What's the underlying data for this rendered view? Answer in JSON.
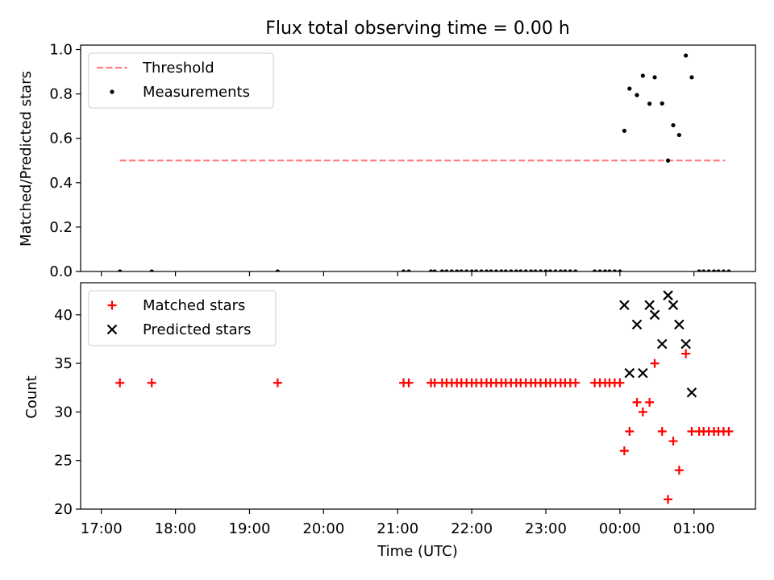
{
  "chart_data": {
    "title": "Flux total observing time = 0.00 h",
    "xlabel": "Time (UTC)",
    "xlim": [
      -0.28,
      8.83
    ],
    "xticks": [
      {
        "v": 0,
        "label": "17:00"
      },
      {
        "v": 1,
        "label": "18:00"
      },
      {
        "v": 2,
        "label": "19:00"
      },
      {
        "v": 3,
        "label": "20:00"
      },
      {
        "v": 4,
        "label": "21:00"
      },
      {
        "v": 5,
        "label": "22:00"
      },
      {
        "v": 6,
        "label": "23:00"
      },
      {
        "v": 7,
        "label": "00:00"
      },
      {
        "v": 8,
        "label": "01:00"
      }
    ],
    "panels": [
      {
        "type": "scatter",
        "ylabel": "Matched/Predicted stars",
        "ylim": [
          0,
          1.02
        ],
        "yticks": [
          0,
          0.2,
          0.4,
          0.6,
          0.8,
          1.0
        ],
        "ytick_labels": [
          "0.0",
          "0.2",
          "0.4",
          "0.6",
          "0.8",
          "1.0"
        ],
        "legend": "top-left",
        "threshold": {
          "name": "Threshold",
          "value": 0.5,
          "x_range": [
            0.25,
            8.42
          ],
          "color": "#ff7f7f",
          "style": "dashed"
        },
        "series": [
          {
            "name": "Measurements",
            "marker": "dot",
            "color": "#000000",
            "points": [
              [
                0.25,
                0
              ],
              [
                0.68,
                0
              ],
              [
                2.38,
                0
              ],
              [
                4.08,
                0
              ],
              [
                4.15,
                0
              ],
              [
                4.45,
                0
              ],
              [
                4.5,
                0
              ],
              [
                4.6,
                0
              ],
              [
                4.66,
                0
              ],
              [
                4.73,
                0
              ],
              [
                4.8,
                0
              ],
              [
                4.86,
                0
              ],
              [
                4.93,
                0
              ],
              [
                5.0,
                0
              ],
              [
                5.06,
                0
              ],
              [
                5.13,
                0
              ],
              [
                5.2,
                0
              ],
              [
                5.26,
                0
              ],
              [
                5.33,
                0
              ],
              [
                5.4,
                0
              ],
              [
                5.46,
                0
              ],
              [
                5.53,
                0
              ],
              [
                5.6,
                0
              ],
              [
                5.66,
                0
              ],
              [
                5.73,
                0
              ],
              [
                5.8,
                0
              ],
              [
                5.86,
                0
              ],
              [
                5.93,
                0
              ],
              [
                6.0,
                0
              ],
              [
                6.06,
                0
              ],
              [
                6.13,
                0
              ],
              [
                6.2,
                0
              ],
              [
                6.26,
                0
              ],
              [
                6.33,
                0
              ],
              [
                6.4,
                0
              ],
              [
                6.66,
                0
              ],
              [
                6.73,
                0
              ],
              [
                6.8,
                0
              ],
              [
                6.86,
                0
              ],
              [
                6.93,
                0
              ],
              [
                7.0,
                0
              ],
              [
                7.06,
                0.634
              ],
              [
                7.13,
                0.824
              ],
              [
                7.23,
                0.795
              ],
              [
                7.31,
                0.882
              ],
              [
                7.4,
                0.756
              ],
              [
                7.47,
                0.875
              ],
              [
                7.57,
                0.757
              ],
              [
                7.65,
                0.5
              ],
              [
                7.72,
                0.659
              ],
              [
                7.8,
                0.615
              ],
              [
                7.89,
                0.973
              ],
              [
                7.97,
                0.875
              ],
              [
                8.07,
                0
              ],
              [
                8.13,
                0
              ],
              [
                8.2,
                0
              ],
              [
                8.27,
                0
              ],
              [
                8.33,
                0
              ],
              [
                8.4,
                0
              ],
              [
                8.47,
                0
              ]
            ]
          }
        ]
      },
      {
        "type": "scatter",
        "ylabel": "Count",
        "ylim": [
          20,
          43.3
        ],
        "yticks": [
          20,
          25,
          30,
          35,
          40
        ],
        "ytick_labels": [
          "20",
          "25",
          "30",
          "35",
          "40"
        ],
        "legend": "top-left",
        "series": [
          {
            "name": "Matched stars",
            "marker": "plus",
            "color": "#ff0000",
            "points": [
              [
                0.25,
                33
              ],
              [
                0.68,
                33
              ],
              [
                2.38,
                33
              ],
              [
                4.08,
                33
              ],
              [
                4.15,
                33
              ],
              [
                4.45,
                33
              ],
              [
                4.5,
                33
              ],
              [
                4.6,
                33
              ],
              [
                4.66,
                33
              ],
              [
                4.73,
                33
              ],
              [
                4.8,
                33
              ],
              [
                4.86,
                33
              ],
              [
                4.93,
                33
              ],
              [
                5.0,
                33
              ],
              [
                5.06,
                33
              ],
              [
                5.13,
                33
              ],
              [
                5.2,
                33
              ],
              [
                5.26,
                33
              ],
              [
                5.33,
                33
              ],
              [
                5.4,
                33
              ],
              [
                5.46,
                33
              ],
              [
                5.53,
                33
              ],
              [
                5.6,
                33
              ],
              [
                5.66,
                33
              ],
              [
                5.73,
                33
              ],
              [
                5.8,
                33
              ],
              [
                5.86,
                33
              ],
              [
                5.93,
                33
              ],
              [
                6.0,
                33
              ],
              [
                6.06,
                33
              ],
              [
                6.13,
                33
              ],
              [
                6.2,
                33
              ],
              [
                6.26,
                33
              ],
              [
                6.33,
                33
              ],
              [
                6.4,
                33
              ],
              [
                6.66,
                33
              ],
              [
                6.73,
                33
              ],
              [
                6.8,
                33
              ],
              [
                6.86,
                33
              ],
              [
                6.93,
                33
              ],
              [
                7.0,
                33
              ],
              [
                7.06,
                26
              ],
              [
                7.13,
                28
              ],
              [
                7.23,
                31
              ],
              [
                7.31,
                30
              ],
              [
                7.4,
                31
              ],
              [
                7.47,
                35
              ],
              [
                7.57,
                28
              ],
              [
                7.65,
                21
              ],
              [
                7.72,
                27
              ],
              [
                7.8,
                24
              ],
              [
                7.89,
                36
              ],
              [
                7.97,
                28
              ],
              [
                8.07,
                28
              ],
              [
                8.13,
                28
              ],
              [
                8.2,
                28
              ],
              [
                8.27,
                28
              ],
              [
                8.33,
                28
              ],
              [
                8.4,
                28
              ],
              [
                8.47,
                28
              ]
            ]
          },
          {
            "name": "Predicted stars",
            "marker": "x",
            "color": "#000000",
            "points": [
              [
                7.06,
                41
              ],
              [
                7.13,
                34
              ],
              [
                7.23,
                39
              ],
              [
                7.31,
                34
              ],
              [
                7.4,
                41
              ],
              [
                7.47,
                40
              ],
              [
                7.57,
                37
              ],
              [
                7.65,
                42
              ],
              [
                7.72,
                41
              ],
              [
                7.8,
                39
              ],
              [
                7.89,
                37
              ],
              [
                7.97,
                32
              ]
            ]
          }
        ]
      }
    ]
  }
}
